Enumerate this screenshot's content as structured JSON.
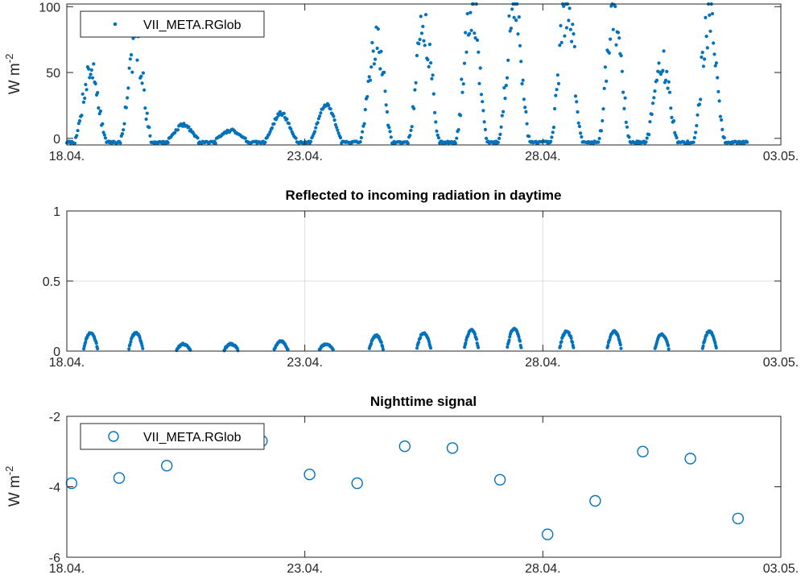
{
  "chart_data": [
    {
      "type": "scatter",
      "title": "",
      "ylabel": "W m",
      "ylabel_sup": "-2",
      "ylim": [
        -5,
        102
      ],
      "yticks": [
        0,
        50,
        100
      ],
      "xlim_days": [
        0,
        15
      ],
      "xticks": [
        "18.04.",
        "23.04.",
        "28.04.",
        "03.05."
      ],
      "grid": false,
      "legend": "top-left",
      "color": "#0072BD",
      "series": [
        {
          "name": "VII_META.RGlob",
          "marker": "dot",
          "peaks": [
            {
              "x": 0.5,
              "y": 52
            },
            {
              "x": 1.45,
              "y": 70
            },
            {
              "x": 2.45,
              "y": 10
            },
            {
              "x": 3.45,
              "y": 6
            },
            {
              "x": 4.5,
              "y": 19
            },
            {
              "x": 5.45,
              "y": 26
            },
            {
              "x": 6.5,
              "y": 75
            },
            {
              "x": 7.5,
              "y": 84
            },
            {
              "x": 8.5,
              "y": 103
            },
            {
              "x": 9.4,
              "y": 97
            },
            {
              "x": 10.5,
              "y": 102
            },
            {
              "x": 11.5,
              "y": 95
            },
            {
              "x": 12.5,
              "y": 56
            },
            {
              "x": 13.5,
              "y": 91
            }
          ],
          "night_level": -3,
          "x_end": 14.3
        }
      ]
    },
    {
      "type": "scatter",
      "title": "Reflected to incoming radiation in daytime",
      "ylabel": "",
      "ylim": [
        0,
        1
      ],
      "yticks": [
        "0",
        "0.5",
        "1"
      ],
      "xlim_days": [
        0,
        15
      ],
      "xticks": [
        "18.04.",
        "23.04.",
        "28.04.",
        "03.05."
      ],
      "grid": true,
      "color": "#0072BD",
      "series": [
        {
          "marker": "dot",
          "day_arcs": [
            {
              "x": 0.5,
              "peak": 0.13
            },
            {
              "x": 1.45,
              "peak": 0.13
            },
            {
              "x": 2.45,
              "peak": 0.05
            },
            {
              "x": 3.45,
              "peak": 0.05
            },
            {
              "x": 4.5,
              "peak": 0.07
            },
            {
              "x": 5.45,
              "peak": 0.05
            },
            {
              "x": 6.5,
              "peak": 0.11
            },
            {
              "x": 7.5,
              "peak": 0.13
            },
            {
              "x": 8.5,
              "peak": 0.15
            },
            {
              "x": 9.4,
              "peak": 0.16
            },
            {
              "x": 10.5,
              "peak": 0.14
            },
            {
              "x": 11.5,
              "peak": 0.14
            },
            {
              "x": 12.5,
              "peak": 0.12
            },
            {
              "x": 13.5,
              "peak": 0.14
            }
          ]
        }
      ]
    },
    {
      "type": "scatter",
      "title": "Nighttime signal",
      "ylabel": "W m",
      "ylabel_sup": "-2",
      "ylim": [
        -6,
        -2
      ],
      "yticks": [
        "-6",
        "-4",
        "-2"
      ],
      "xlim_days": [
        0,
        15
      ],
      "xticks": [
        "18.04.",
        "23.04.",
        "28.04.",
        "03.05."
      ],
      "grid": false,
      "legend": "top-left",
      "color": "#0072BD",
      "series": [
        {
          "name": "VII_META.RGlob",
          "marker": "circle",
          "x": [
            0.1,
            1.1,
            2.1,
            4.1,
            5.1,
            6.1,
            7.1,
            8.1,
            9.1,
            10.1,
            11.1,
            12.1,
            13.1,
            14.1
          ],
          "y": [
            -3.9,
            -3.75,
            -3.4,
            -2.7,
            -3.65,
            -3.9,
            -2.85,
            -2.9,
            -3.8,
            -5.35,
            -4.4,
            -3.0,
            -3.2,
            -4.9
          ]
        }
      ]
    }
  ]
}
